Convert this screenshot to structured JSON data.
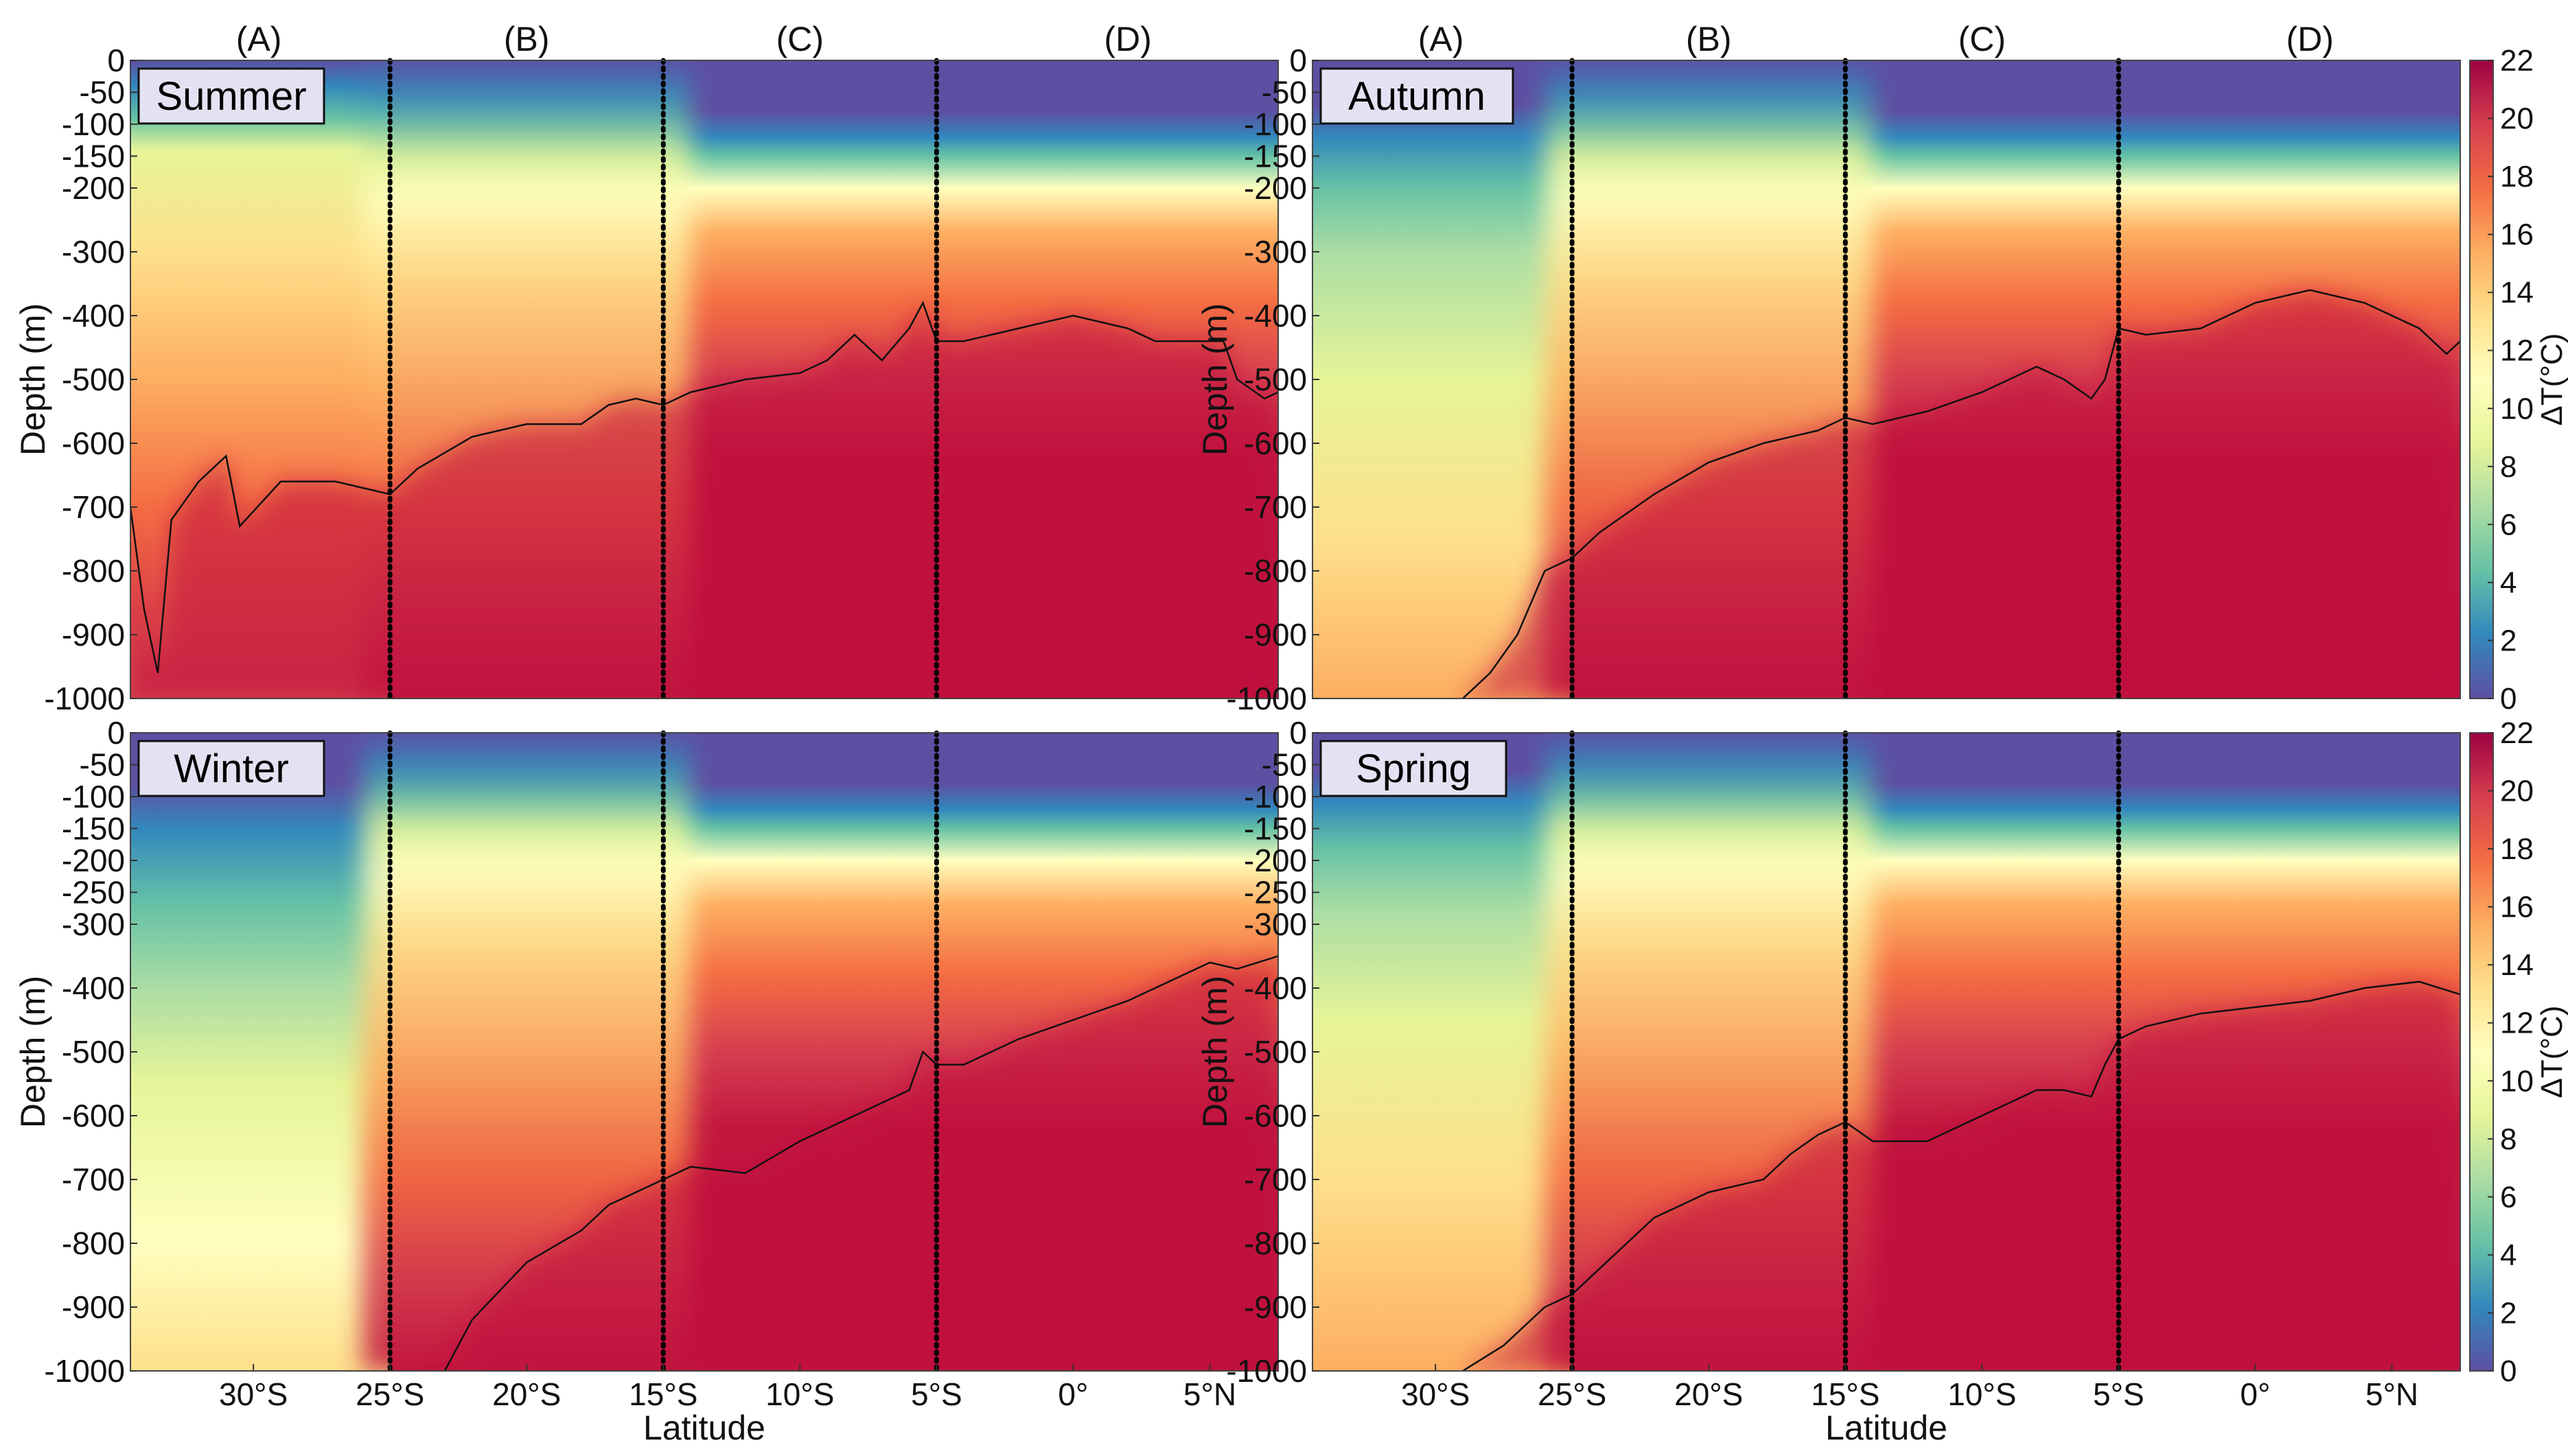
{
  "chart_data": {
    "type": "heatmap",
    "xlabel": "Latitude",
    "ylabel": "Depth (m)",
    "colorbar_label": "ΔT(°C)",
    "colorbar_ticks": [
      "0",
      "2",
      "4",
      "6",
      "8",
      "10",
      "12",
      "14",
      "16",
      "18",
      "20",
      "22"
    ],
    "clim": [
      0,
      22
    ],
    "ylim": [
      -1000,
      0
    ],
    "xlim": [
      -34.5,
      7.5
    ],
    "y_ticks": [
      {
        "v": 0,
        "label": "0"
      },
      {
        "v": -50,
        "label": "-50"
      },
      {
        "v": -100,
        "label": "-100"
      },
      {
        "v": -150,
        "label": "-150"
      },
      {
        "v": -200,
        "label": "-200"
      },
      {
        "v": -300,
        "label": "-300"
      },
      {
        "v": -400,
        "label": "-400"
      },
      {
        "v": -500,
        "label": "-500"
      },
      {
        "v": -600,
        "label": "-600"
      },
      {
        "v": -700,
        "label": "-700"
      },
      {
        "v": -800,
        "label": "-800"
      },
      {
        "v": -900,
        "label": "-900"
      },
      {
        "v": -1000,
        "label": "-1000"
      }
    ],
    "y_ticks_lower": [
      {
        "v": 0,
        "label": "0"
      },
      {
        "v": -50,
        "label": "-50"
      },
      {
        "v": -100,
        "label": "-100"
      },
      {
        "v": -150,
        "label": "-150"
      },
      {
        "v": -200,
        "label": "-200"
      },
      {
        "v": -250,
        "label": "-250"
      },
      {
        "v": -300,
        "label": "-300"
      },
      {
        "v": -400,
        "label": "-400"
      },
      {
        "v": -500,
        "label": "-500"
      },
      {
        "v": -600,
        "label": "-600"
      },
      {
        "v": -700,
        "label": "-700"
      },
      {
        "v": -800,
        "label": "-800"
      },
      {
        "v": -900,
        "label": "-900"
      },
      {
        "v": -1000,
        "label": "-1000"
      }
    ],
    "x_ticks": [
      {
        "v": -30,
        "label": "30°S"
      },
      {
        "v": -25,
        "label": "25°S"
      },
      {
        "v": -20,
        "label": "20°S"
      },
      {
        "v": -15,
        "label": "15°S"
      },
      {
        "v": -10,
        "label": "10°S"
      },
      {
        "v": -5,
        "label": "5°S"
      },
      {
        "v": 0,
        "label": "0°"
      },
      {
        "v": 5,
        "label": "5°N"
      }
    ],
    "region_boundaries": [
      -25,
      -15,
      -5
    ],
    "regions": [
      {
        "label": "(A)",
        "center": -29.8
      },
      {
        "label": "(B)",
        "center": -20
      },
      {
        "label": "(C)",
        "center": -10
      },
      {
        "label": "(D)",
        "center": 2
      }
    ],
    "panels": [
      {
        "season": "Summer",
        "isotherm_depth": [
          [
            -34.5,
            -700
          ],
          [
            -34,
            -860
          ],
          [
            -33.5,
            -960
          ],
          [
            -33,
            -720
          ],
          [
            -32,
            -660
          ],
          [
            -31,
            -620
          ],
          [
            -30.5,
            -730
          ],
          [
            -29,
            -660
          ],
          [
            -27,
            -660
          ],
          [
            -25,
            -680
          ],
          [
            -24,
            -640
          ],
          [
            -22,
            -590
          ],
          [
            -20,
            -570
          ],
          [
            -18,
            -570
          ],
          [
            -17,
            -540
          ],
          [
            -16,
            -530
          ],
          [
            -15,
            -540
          ],
          [
            -14,
            -520
          ],
          [
            -12,
            -500
          ],
          [
            -10,
            -490
          ],
          [
            -9,
            -470
          ],
          [
            -8,
            -430
          ],
          [
            -7,
            -470
          ],
          [
            -6,
            -420
          ],
          [
            -5.5,
            -380
          ],
          [
            -5,
            -440
          ],
          [
            -4,
            -440
          ],
          [
            -2,
            -420
          ],
          [
            0,
            -400
          ],
          [
            2,
            -420
          ],
          [
            3,
            -440
          ],
          [
            4.5,
            -440
          ],
          [
            5.5,
            -440
          ],
          [
            6,
            -500
          ],
          [
            7,
            -530
          ],
          [
            7.5,
            -520
          ]
        ]
      },
      {
        "season": "Autumn",
        "isotherm_depth": [
          [
            -29,
            -1000
          ],
          [
            -28,
            -960
          ],
          [
            -27,
            -900
          ],
          [
            -26,
            -800
          ],
          [
            -25,
            -780
          ],
          [
            -24,
            -740
          ],
          [
            -22,
            -680
          ],
          [
            -20,
            -630
          ],
          [
            -18,
            -600
          ],
          [
            -16,
            -580
          ],
          [
            -15,
            -560
          ],
          [
            -14,
            -570
          ],
          [
            -12,
            -550
          ],
          [
            -10,
            -520
          ],
          [
            -8,
            -480
          ],
          [
            -7,
            -500
          ],
          [
            -6,
            -530
          ],
          [
            -5.5,
            -500
          ],
          [
            -5,
            -420
          ],
          [
            -4,
            -430
          ],
          [
            -2,
            -420
          ],
          [
            0,
            -380
          ],
          [
            2,
            -360
          ],
          [
            4,
            -380
          ],
          [
            6,
            -420
          ],
          [
            7,
            -460
          ],
          [
            7.5,
            -440
          ]
        ]
      },
      {
        "season": "Winter",
        "isotherm_depth": [
          [
            -23,
            -1000
          ],
          [
            -22,
            -920
          ],
          [
            -20,
            -830
          ],
          [
            -18,
            -780
          ],
          [
            -17,
            -740
          ],
          [
            -15,
            -700
          ],
          [
            -14,
            -680
          ],
          [
            -12,
            -690
          ],
          [
            -10,
            -640
          ],
          [
            -8,
            -600
          ],
          [
            -7,
            -580
          ],
          [
            -6,
            -560
          ],
          [
            -5.5,
            -500
          ],
          [
            -5,
            -520
          ],
          [
            -4,
            -520
          ],
          [
            -2,
            -480
          ],
          [
            0,
            -450
          ],
          [
            2,
            -420
          ],
          [
            4,
            -380
          ],
          [
            5,
            -360
          ],
          [
            6,
            -370
          ],
          [
            7.5,
            -350
          ]
        ]
      },
      {
        "season": "Spring",
        "isotherm_depth": [
          [
            -29,
            -1000
          ],
          [
            -27.5,
            -960
          ],
          [
            -26,
            -900
          ],
          [
            -25,
            -880
          ],
          [
            -24,
            -840
          ],
          [
            -22,
            -760
          ],
          [
            -20,
            -720
          ],
          [
            -18,
            -700
          ],
          [
            -17,
            -660
          ],
          [
            -16,
            -630
          ],
          [
            -15,
            -610
          ],
          [
            -14,
            -640
          ],
          [
            -12,
            -640
          ],
          [
            -10,
            -600
          ],
          [
            -8,
            -560
          ],
          [
            -7,
            -560
          ],
          [
            -6,
            -570
          ],
          [
            -5.5,
            -520
          ],
          [
            -5,
            -480
          ],
          [
            -4,
            -460
          ],
          [
            -2,
            -440
          ],
          [
            0,
            -430
          ],
          [
            2,
            -420
          ],
          [
            4,
            -400
          ],
          [
            6,
            -390
          ],
          [
            7.5,
            -410
          ]
        ]
      }
    ]
  }
}
